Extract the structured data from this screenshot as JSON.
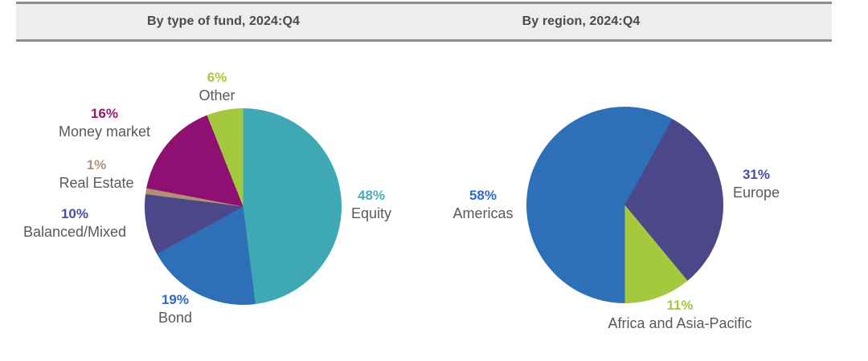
{
  "header": {
    "left_title": "By type of fund, 2024:Q4",
    "right_title": "By region, 2024:Q4",
    "bg": "#EDEDEE",
    "border_color": "#8D8D8D",
    "text_color": "#4B4B4D"
  },
  "chart_data": [
    {
      "type": "pie",
      "title": "By type of fund, 2024:Q4",
      "start_angle_deg": 0,
      "direction": "clockwise",
      "categories": [
        "Equity",
        "Bond",
        "Balanced/Mixed",
        "Real Estate",
        "Money market",
        "Other"
      ],
      "values": [
        48,
        19,
        10,
        1,
        16,
        6
      ],
      "pct_labels": [
        "48%",
        "19%",
        "10%",
        "1%",
        "16%",
        "6%"
      ],
      "colors": [
        "#3EA9B5",
        "#2E70B8",
        "#4B4788",
        "#B18F76",
        "#8E1072",
        "#A5C93E"
      ],
      "pct_text_colors": [
        "#47ADBA",
        "#3269C2",
        "#4F4C9E",
        "#B5917A",
        "#97196F",
        "#A3C93B"
      ],
      "legend_position": "labels-around-pie",
      "category_text_color": "#58595B"
    },
    {
      "type": "pie",
      "title": "By region, 2024:Q4",
      "start_angle_deg": 180,
      "direction": "clockwise",
      "categories": [
        "Americas",
        "Europe",
        "Africa and Asia-Pacific"
      ],
      "values": [
        58,
        31,
        11
      ],
      "pct_labels": [
        "58%",
        "31%",
        "11%"
      ],
      "colors": [
        "#2E70B8",
        "#4B4788",
        "#A5C93E"
      ],
      "pct_text_colors": [
        "#3269C2",
        "#4F4C9E",
        "#A3C93B"
      ],
      "legend_position": "labels-around-pie",
      "category_text_color": "#58595B"
    }
  ]
}
